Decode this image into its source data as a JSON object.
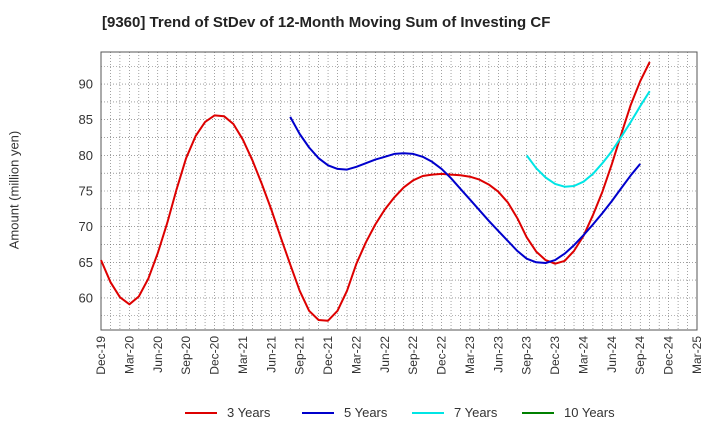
{
  "title": "[9360]  Trend of StDev of 12-Month Moving Sum of Investing CF",
  "chart_data": {
    "type": "line",
    "ylabel": "Amount (million yen)",
    "xlabel": "",
    "ylim": [
      55.5,
      94.5
    ],
    "yticks": [
      60,
      65,
      70,
      75,
      80,
      85,
      90
    ],
    "x_tick_labels": [
      "Dec-19",
      "Mar-20",
      "Jun-20",
      "Sep-20",
      "Dec-20",
      "Mar-21",
      "Jun-21",
      "Sep-21",
      "Dec-21",
      "Mar-22",
      "Jun-22",
      "Sep-22",
      "Dec-22",
      "Mar-23",
      "Jun-23",
      "Sep-23",
      "Dec-23",
      "Mar-24",
      "Jun-24",
      "Sep-24",
      "Dec-24",
      "Mar-25"
    ],
    "x_range_months": [
      0,
      63
    ],
    "grid": true,
    "legend_position": "bottom",
    "series": [
      {
        "name": "3 Years",
        "color": "#dd0000",
        "points": [
          [
            0,
            65.3
          ],
          [
            1,
            62.2
          ],
          [
            2,
            60.1
          ],
          [
            3,
            59.1
          ],
          [
            4,
            60.2
          ],
          [
            5,
            62.7
          ],
          [
            6,
            66.3
          ],
          [
            7,
            70.5
          ],
          [
            8,
            75.3
          ],
          [
            9,
            79.6
          ],
          [
            10,
            82.7
          ],
          [
            11,
            84.7
          ],
          [
            12,
            85.6
          ],
          [
            13,
            85.5
          ],
          [
            14,
            84.4
          ],
          [
            15,
            82.2
          ],
          [
            16,
            79.3
          ],
          [
            17,
            76.0
          ],
          [
            18,
            72.4
          ],
          [
            19,
            68.5
          ],
          [
            20,
            64.7
          ],
          [
            21,
            61.0
          ],
          [
            22,
            58.2
          ],
          [
            23,
            56.9
          ],
          [
            24,
            56.8
          ],
          [
            25,
            58.2
          ],
          [
            26,
            61.0
          ],
          [
            27,
            64.8
          ],
          [
            28,
            67.8
          ],
          [
            29,
            70.3
          ],
          [
            30,
            72.4
          ],
          [
            31,
            74.1
          ],
          [
            32,
            75.5
          ],
          [
            33,
            76.5
          ],
          [
            34,
            77.1
          ],
          [
            35,
            77.3
          ],
          [
            36,
            77.4
          ],
          [
            37,
            77.3
          ],
          [
            38,
            77.2
          ],
          [
            39,
            77.0
          ],
          [
            40,
            76.6
          ],
          [
            41,
            75.9
          ],
          [
            42,
            74.9
          ],
          [
            43,
            73.4
          ],
          [
            44,
            71.2
          ],
          [
            45,
            68.5
          ],
          [
            46,
            66.5
          ],
          [
            47,
            65.3
          ],
          [
            48,
            64.8
          ],
          [
            49,
            65.2
          ],
          [
            50,
            66.6
          ],
          [
            51,
            68.7
          ],
          [
            52,
            71.6
          ],
          [
            53,
            74.9
          ],
          [
            54,
            78.8
          ],
          [
            55,
            83.0
          ],
          [
            56,
            87.1
          ],
          [
            57,
            90.4
          ],
          [
            58,
            93.1
          ]
        ]
      },
      {
        "name": "5 Years",
        "color": "#0000cc",
        "points": [
          [
            20,
            85.4
          ],
          [
            21,
            83.0
          ],
          [
            22,
            81.1
          ],
          [
            23,
            79.6
          ],
          [
            24,
            78.6
          ],
          [
            25,
            78.1
          ],
          [
            26,
            78.0
          ],
          [
            27,
            78.4
          ],
          [
            28,
            78.9
          ],
          [
            29,
            79.4
          ],
          [
            30,
            79.8
          ],
          [
            31,
            80.2
          ],
          [
            32,
            80.3
          ],
          [
            33,
            80.2
          ],
          [
            34,
            79.8
          ],
          [
            35,
            79.1
          ],
          [
            36,
            78.1
          ],
          [
            37,
            76.8
          ],
          [
            38,
            75.3
          ],
          [
            39,
            73.8
          ],
          [
            40,
            72.3
          ],
          [
            41,
            70.8
          ],
          [
            42,
            69.4
          ],
          [
            43,
            68.0
          ],
          [
            44,
            66.6
          ],
          [
            45,
            65.5
          ],
          [
            46,
            65.0
          ],
          [
            47,
            64.9
          ],
          [
            48,
            65.3
          ],
          [
            49,
            66.2
          ],
          [
            50,
            67.4
          ],
          [
            51,
            68.8
          ],
          [
            52,
            70.3
          ],
          [
            53,
            71.9
          ],
          [
            54,
            73.6
          ],
          [
            55,
            75.4
          ],
          [
            56,
            77.2
          ],
          [
            57,
            78.8
          ]
        ]
      },
      {
        "name": "7 Years",
        "color": "#00e5e5",
        "points": [
          [
            45,
            80.0
          ],
          [
            46,
            78.2
          ],
          [
            47,
            76.9
          ],
          [
            48,
            76.0
          ],
          [
            49,
            75.6
          ],
          [
            50,
            75.7
          ],
          [
            51,
            76.3
          ],
          [
            52,
            77.4
          ],
          [
            53,
            78.9
          ],
          [
            54,
            80.6
          ],
          [
            55,
            82.6
          ],
          [
            56,
            84.7
          ],
          [
            57,
            86.9
          ],
          [
            58,
            89.0
          ]
        ]
      },
      {
        "name": "10 Years",
        "color": "#008000",
        "points": []
      }
    ]
  }
}
